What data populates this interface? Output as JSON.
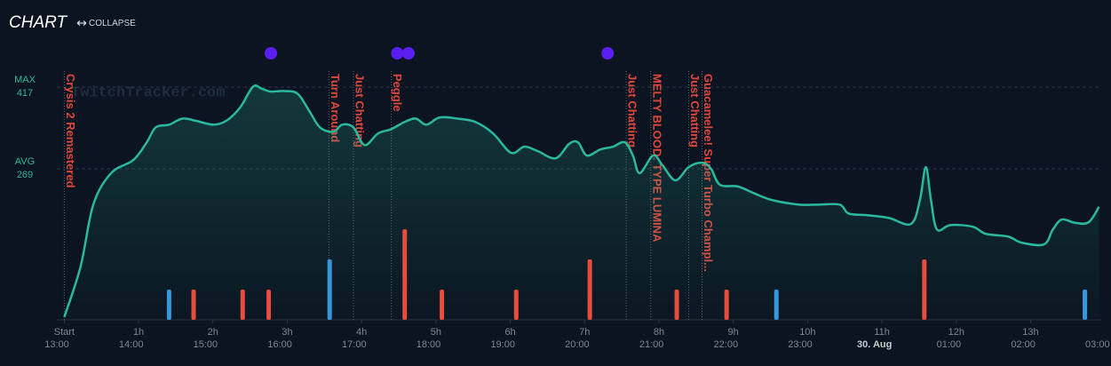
{
  "header": {
    "title": "CHART",
    "collapse": "COLLAPSE"
  },
  "chart_data": {
    "type": "line",
    "watermark": "TwitchTracker.com",
    "xlim": [
      -0.1,
      13.95
    ],
    "ylim": [
      0,
      480
    ],
    "xticks": [
      {
        "value": 0,
        "label": "Start"
      },
      {
        "value": 1,
        "label": "1h"
      },
      {
        "value": 2,
        "label": "2h"
      },
      {
        "value": 3,
        "label": "3h"
      },
      {
        "value": 4,
        "label": "4h"
      },
      {
        "value": 5,
        "label": "5h"
      },
      {
        "value": 6,
        "label": "6h"
      },
      {
        "value": 7,
        "label": "7h"
      },
      {
        "value": 8,
        "label": "8h"
      },
      {
        "value": 9,
        "label": "9h"
      },
      {
        "value": 10,
        "label": "10h"
      },
      {
        "value": 11,
        "label": "11h"
      },
      {
        "value": 12,
        "label": "12h"
      },
      {
        "value": 13,
        "label": "13h"
      }
    ],
    "clock_ticks": [
      {
        "value": -0.1,
        "label": "13:00"
      },
      {
        "value": 0.9,
        "label": "14:00"
      },
      {
        "value": 1.9,
        "label": "15:00"
      },
      {
        "value": 2.9,
        "label": "16:00"
      },
      {
        "value": 3.9,
        "label": "17:00"
      },
      {
        "value": 4.9,
        "label": "18:00"
      },
      {
        "value": 5.9,
        "label": "19:00"
      },
      {
        "value": 6.9,
        "label": "20:00"
      },
      {
        "value": 7.9,
        "label": "21:00"
      },
      {
        "value": 8.9,
        "label": "22:00"
      },
      {
        "value": 9.9,
        "label": "23:00"
      },
      {
        "value": 10.9,
        "label": "30. Aug"
      },
      {
        "value": 11.9,
        "label": "01:00"
      },
      {
        "value": 12.9,
        "label": "02:00"
      },
      {
        "value": 13.9,
        "label": "03:00"
      }
    ],
    "reference_lines": [
      {
        "label": "MAX",
        "value": 417
      },
      {
        "label": "AVG",
        "value": 269
      }
    ],
    "reference_color": "#2bb99b",
    "series": [
      {
        "color": "#2bb99b",
        "x": [
          0,
          0.22,
          0.39,
          0.63,
          0.93,
          1.11,
          1.23,
          1.41,
          1.59,
          1.77,
          2.01,
          2.19,
          2.37,
          2.54,
          2.66,
          2.78,
          2.96,
          3.14,
          3.3,
          3.44,
          3.62,
          3.74,
          3.89,
          4.04,
          4.22,
          4.4,
          4.58,
          4.73,
          4.87,
          5.05,
          5.29,
          5.53,
          5.77,
          6.01,
          6.19,
          6.37,
          6.61,
          6.79,
          6.91,
          7.03,
          7.21,
          7.38,
          7.54,
          7.65,
          7.74,
          7.92,
          8.04,
          8.22,
          8.4,
          8.58,
          8.7,
          8.82,
          9.06,
          9.29,
          9.53,
          9.89,
          10.13,
          10.43,
          10.55,
          10.79,
          11.09,
          11.39,
          11.51,
          11.59,
          11.66,
          11.74,
          11.92,
          12.22,
          12.4,
          12.7,
          12.88,
          13.18,
          13.3,
          13.42,
          13.6,
          13.78,
          13.92
        ],
        "values": [
          0,
          92,
          204,
          261,
          285,
          317,
          344,
          349,
          360,
          356,
          349,
          357,
          381,
          418,
          414,
          409,
          410,
          405,
          373,
          344,
          336,
          349,
          344,
          312,
          333,
          341,
          354,
          360,
          349,
          362,
          360,
          354,
          333,
          298,
          309,
          301,
          288,
          314,
          317,
          293,
          304,
          309,
          317,
          293,
          261,
          293,
          277,
          248,
          272,
          280,
          269,
          240,
          237,
          224,
          212,
          204,
          204,
          204,
          188,
          185,
          180,
          169,
          212,
          272,
          212,
          159,
          167,
          164,
          151,
          146,
          135,
          132,
          159,
          177,
          171,
          172,
          200
        ]
      }
    ],
    "game_changes": [
      {
        "label": "Crysis 2 Remastered",
        "x": 0
      },
      {
        "label": "Turn Around",
        "x": 3.56
      },
      {
        "label": "Just Chatting",
        "x": 3.89
      },
      {
        "label": "Peggle",
        "x": 4.4
      },
      {
        "label": "Just Chatting",
        "x": 7.56
      },
      {
        "label": "MELTY BLOOD: TYPE LUMINA",
        "x": 7.89
      },
      {
        "label": "Just Chatting",
        "x": 8.4
      },
      {
        "label": "Guacamelee! Super Turbo Champl...",
        "x": 8.58
      }
    ],
    "game_color": "#e0473c",
    "event_bars": {
      "y2lim": [
        0,
        10
      ],
      "series": [
        {
          "color": "#e74c3c",
          "x": [
            1.74,
            2.4,
            2.75,
            4.58,
            5.08,
            6.08,
            7.07,
            8.24,
            8.91,
            11.57
          ],
          "values": [
            1,
            1,
            1,
            3,
            1,
            1,
            2,
            1,
            1,
            2
          ]
        },
        {
          "color": "#3498db",
          "x": [
            1.41,
            3.57,
            9.58,
            13.73
          ],
          "values": [
            1,
            2,
            1,
            1
          ]
        }
      ]
    },
    "markers": {
      "color": "#5a1ff0",
      "x": [
        2.78,
        4.48,
        4.63,
        7.31
      ]
    }
  }
}
